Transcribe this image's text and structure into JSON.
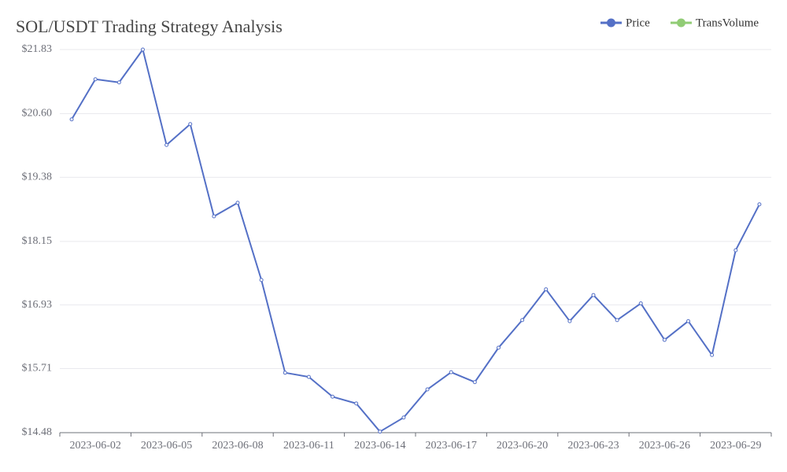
{
  "chart_data": {
    "type": "line",
    "title": "SOL/USDT Trading Strategy Analysis",
    "categories": [
      null,
      "2023-06-02",
      null,
      null,
      "2023-06-05",
      null,
      null,
      "2023-06-08",
      null,
      null,
      "2023-06-11",
      null,
      null,
      "2023-06-14",
      null,
      null,
      "2023-06-17",
      null,
      null,
      "2023-06-20",
      null,
      null,
      "2023-06-23",
      null,
      null,
      "2023-06-26",
      null,
      null,
      "2023-06-29",
      null
    ],
    "series": [
      {
        "name": "Price",
        "color": "#5470c6",
        "values": [
          20.49,
          21.26,
          21.2,
          21.83,
          20.0,
          20.4,
          18.63,
          18.89,
          17.41,
          15.63,
          15.55,
          15.17,
          15.04,
          14.5,
          14.77,
          15.31,
          15.64,
          15.45,
          16.11,
          16.64,
          17.23,
          16.62,
          17.12,
          16.64,
          16.96,
          16.26,
          16.62,
          15.97,
          17.98,
          18.86
        ]
      },
      {
        "name": "TransVolume",
        "color": "#91cc75",
        "values": [
          null,
          null,
          null,
          null,
          null,
          null,
          null,
          null,
          null,
          null,
          null,
          null,
          null,
          null,
          null,
          null,
          null,
          null,
          null,
          null,
          null,
          null,
          null,
          null,
          null,
          null,
          null,
          null,
          null,
          null
        ]
      }
    ],
    "ylim": [
      14.48,
      21.83
    ],
    "yticks": [
      {
        "value": 14.48,
        "label": "$14.48"
      },
      {
        "value": 15.71,
        "label": "$15.71"
      },
      {
        "value": 16.93,
        "label": "$16.93"
      },
      {
        "value": 18.15,
        "label": "$18.15"
      },
      {
        "value": 19.38,
        "label": "$19.38"
      },
      {
        "value": 20.6,
        "label": "$20.60"
      },
      {
        "value": 21.83,
        "label": "$21.83"
      }
    ],
    "grid": true
  }
}
